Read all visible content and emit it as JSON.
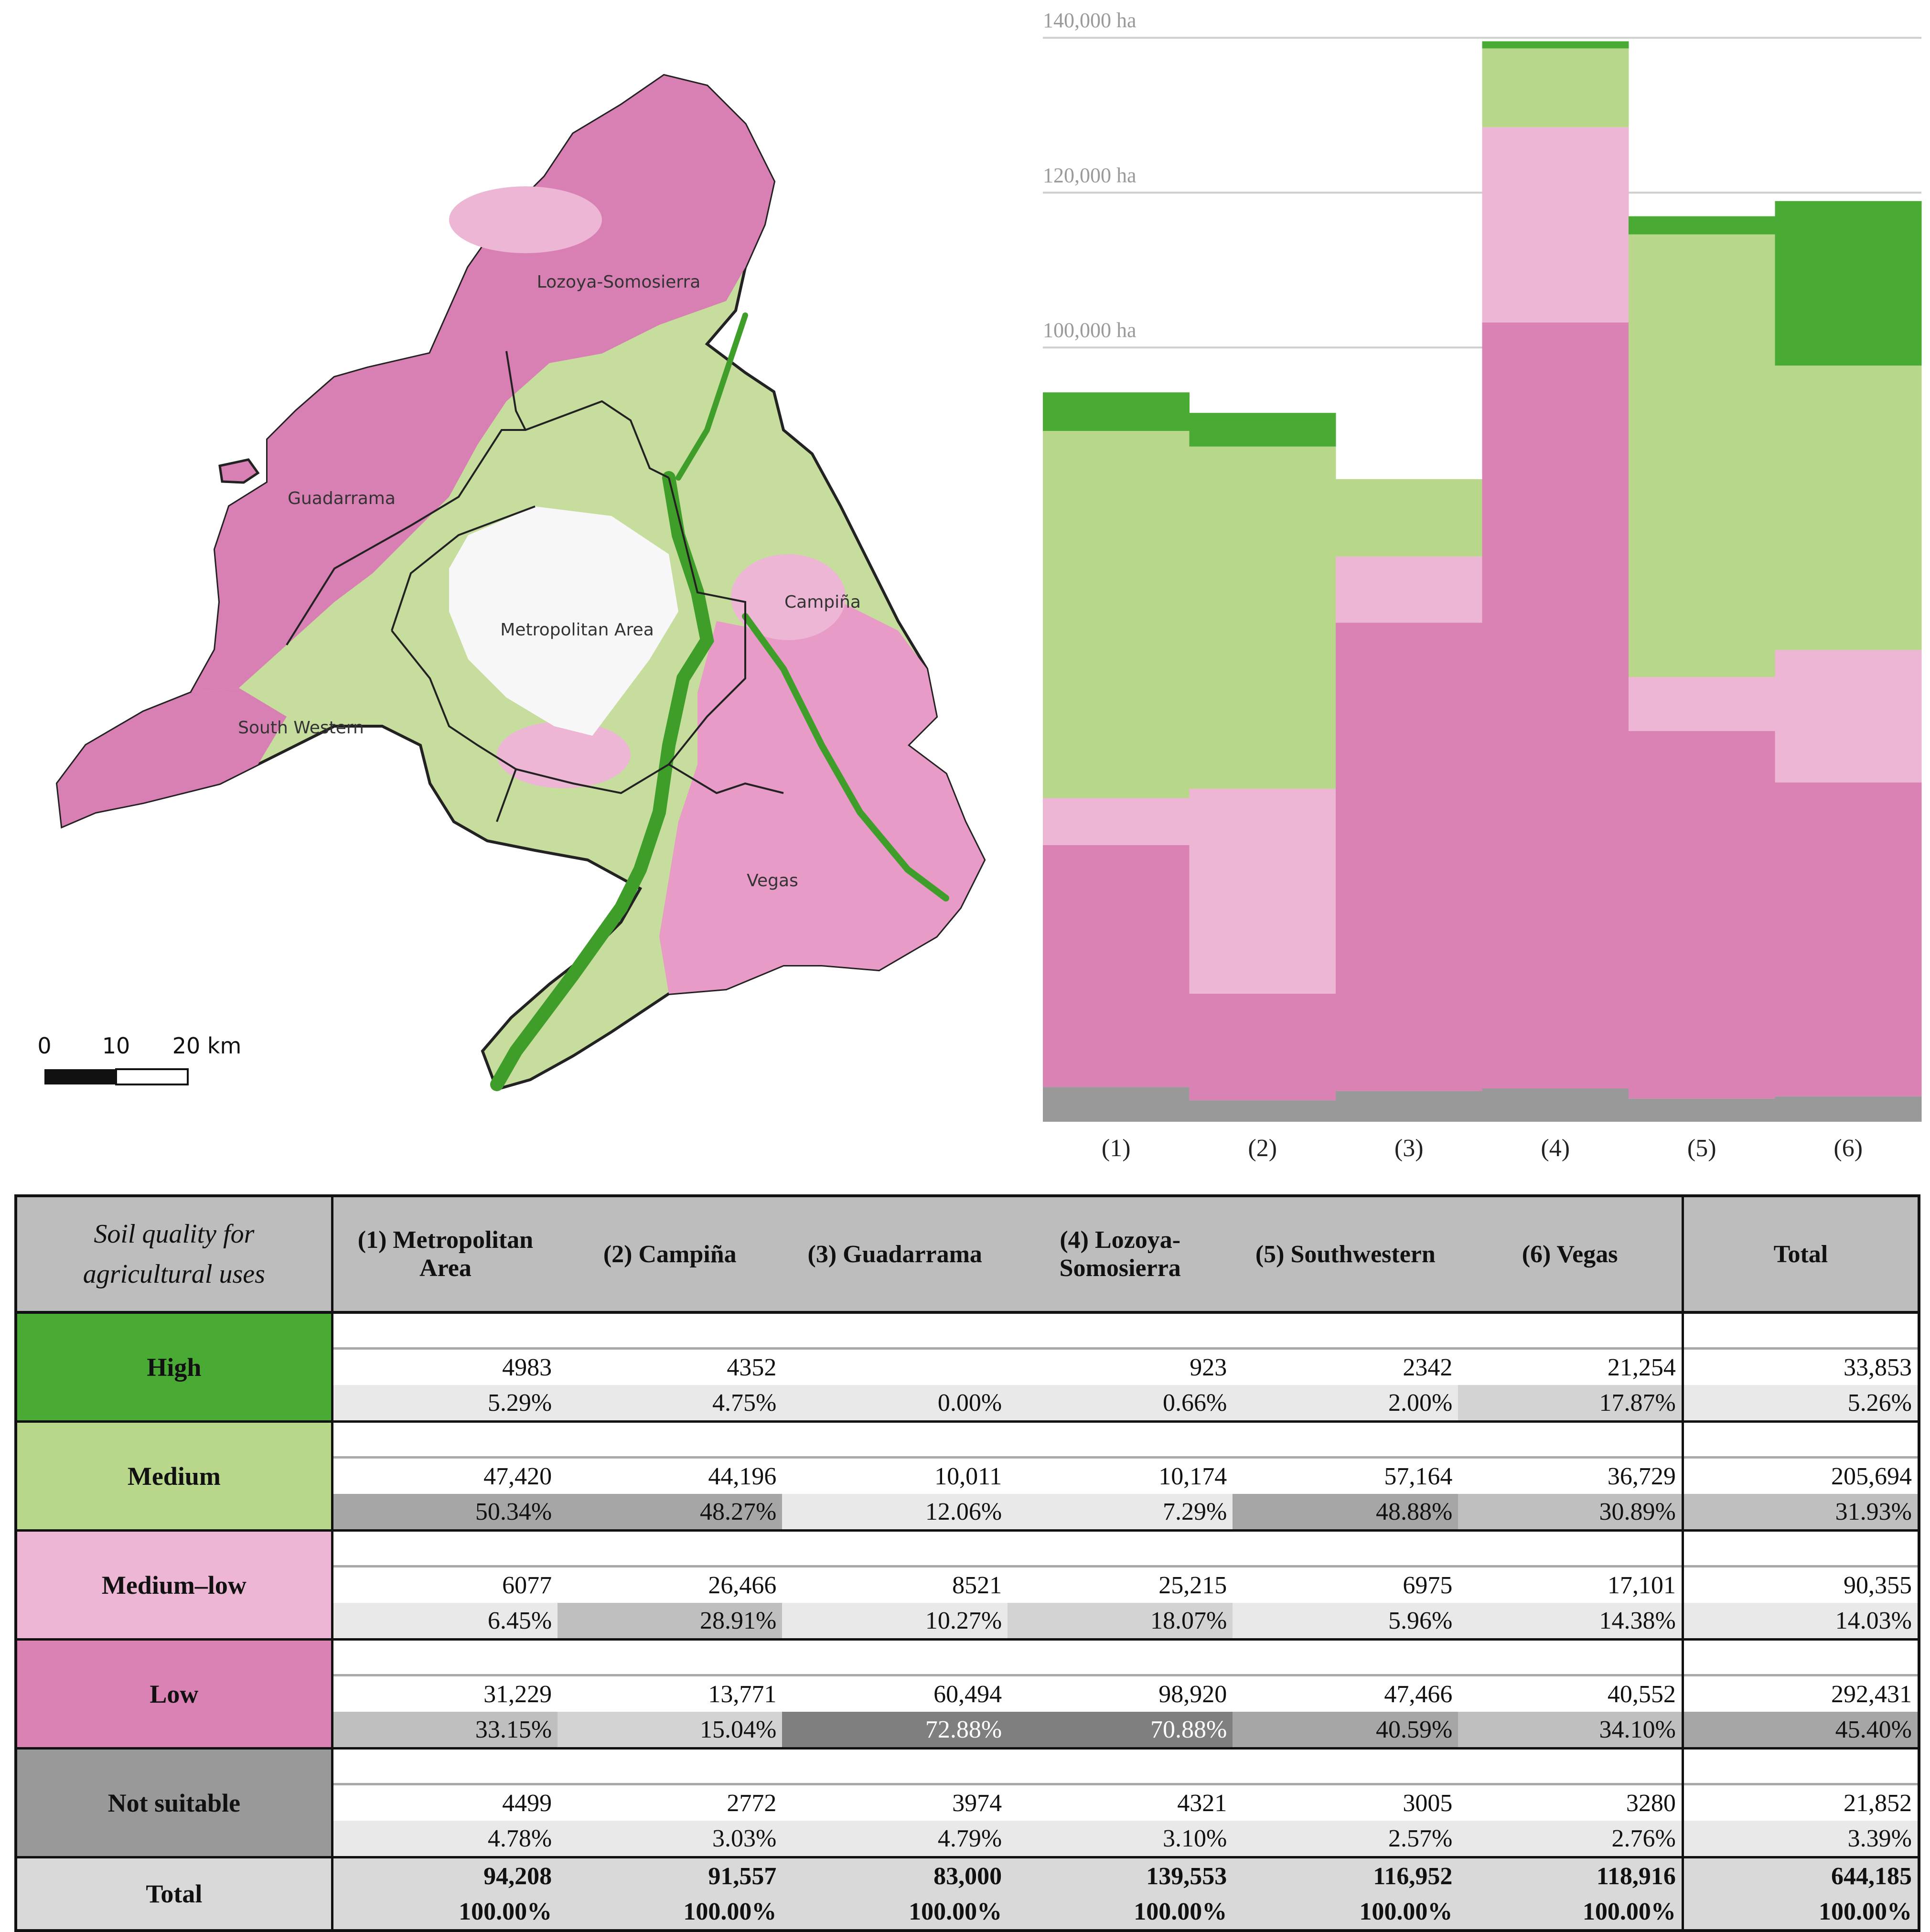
{
  "map": {
    "region_labels": [
      "Lozoya-Somosierra",
      "Guadarrama",
      "Campiña",
      "Metropolitan Area",
      "South Western",
      "Vegas"
    ],
    "scale": {
      "labels": [
        "0",
        "10",
        "20 km"
      ]
    }
  },
  "colors": {
    "high": "#4aab34",
    "medium": "#b8d78a",
    "medium_low": "#ecb6d4",
    "low": "#db82b5",
    "not_suitable": "#999999",
    "header_bg": "#bdbdbd"
  },
  "chart_data": {
    "type": "bar",
    "stacked": true,
    "categories": [
      "(1)",
      "(2)",
      "(3)",
      "(4)",
      "(5)",
      "(6)"
    ],
    "y_tick_labels": [
      "140,000 ha",
      "120,000 ha",
      "100,000 ha"
    ],
    "y_ticks": [
      140000,
      120000,
      100000
    ],
    "ylim": [
      0,
      140000
    ],
    "series": [
      {
        "name": "Not suitable",
        "values": [
          4499,
          2772,
          3974,
          4321,
          3005,
          3280
        ]
      },
      {
        "name": "Low",
        "values": [
          31229,
          13771,
          60494,
          98920,
          47466,
          40552
        ]
      },
      {
        "name": "Medium–low",
        "values": [
          6077,
          26466,
          8521,
          25215,
          6975,
          17101
        ]
      },
      {
        "name": "Medium",
        "values": [
          47420,
          44196,
          10011,
          10174,
          57164,
          36729
        ]
      },
      {
        "name": "High",
        "values": [
          4983,
          4352,
          0,
          923,
          2342,
          21254
        ]
      }
    ]
  },
  "table": {
    "header": {
      "first_line1": "Soil quality for",
      "first_line2": "agricultural uses",
      "c1_line1": "(1) Metropolitan",
      "c1_line2": "Area",
      "c2": "(2) Campiña",
      "c3": "(3) Guadarrama",
      "c4_line1": "(4) Lozoya-",
      "c4_line2": "Somosierra",
      "c5": "(5) Southwestern",
      "c6": "(6) Vegas",
      "total": "Total"
    },
    "rows": [
      {
        "label": "High",
        "values": [
          "4983",
          "4352",
          "",
          "923",
          "2342",
          "21,254",
          "33,853"
        ],
        "pcts": [
          "5.29%",
          "4.75%",
          "0.00%",
          "0.66%",
          "2.00%",
          "17.87%",
          "5.26%"
        ]
      },
      {
        "label": "Medium",
        "values": [
          "47,420",
          "44,196",
          "10,011",
          "10,174",
          "57,164",
          "36,729",
          "205,694"
        ],
        "pcts": [
          "50.34%",
          "48.27%",
          "12.06%",
          "7.29%",
          "48.88%",
          "30.89%",
          "31.93%"
        ]
      },
      {
        "label": "Medium–low",
        "values": [
          "6077",
          "26,466",
          "8521",
          "25,215",
          "6975",
          "17,101",
          "90,355"
        ],
        "pcts": [
          "6.45%",
          "28.91%",
          "10.27%",
          "18.07%",
          "5.96%",
          "14.38%",
          "14.03%"
        ]
      },
      {
        "label": "Low",
        "values": [
          "31,229",
          "13,771",
          "60,494",
          "98,920",
          "47,466",
          "40,552",
          "292,431"
        ],
        "pcts": [
          "33.15%",
          "15.04%",
          "72.88%",
          "70.88%",
          "40.59%",
          "34.10%",
          "45.40%"
        ]
      },
      {
        "label": "Not suitable",
        "values": [
          "4499",
          "2772",
          "3974",
          "4321",
          "3005",
          "3280",
          "21,852"
        ],
        "pcts": [
          "4.78%",
          "3.03%",
          "4.79%",
          "3.10%",
          "2.57%",
          "2.76%",
          "3.39%"
        ]
      }
    ],
    "total": {
      "label": "Total",
      "values": [
        "94,208",
        "91,557",
        "83,000",
        "139,553",
        "116,952",
        "118,916",
        "644,185"
      ],
      "pcts": [
        "100.00%",
        "100.00%",
        "100.00%",
        "100.00%",
        "100.00%",
        "100.00%",
        "100.00%"
      ]
    }
  }
}
